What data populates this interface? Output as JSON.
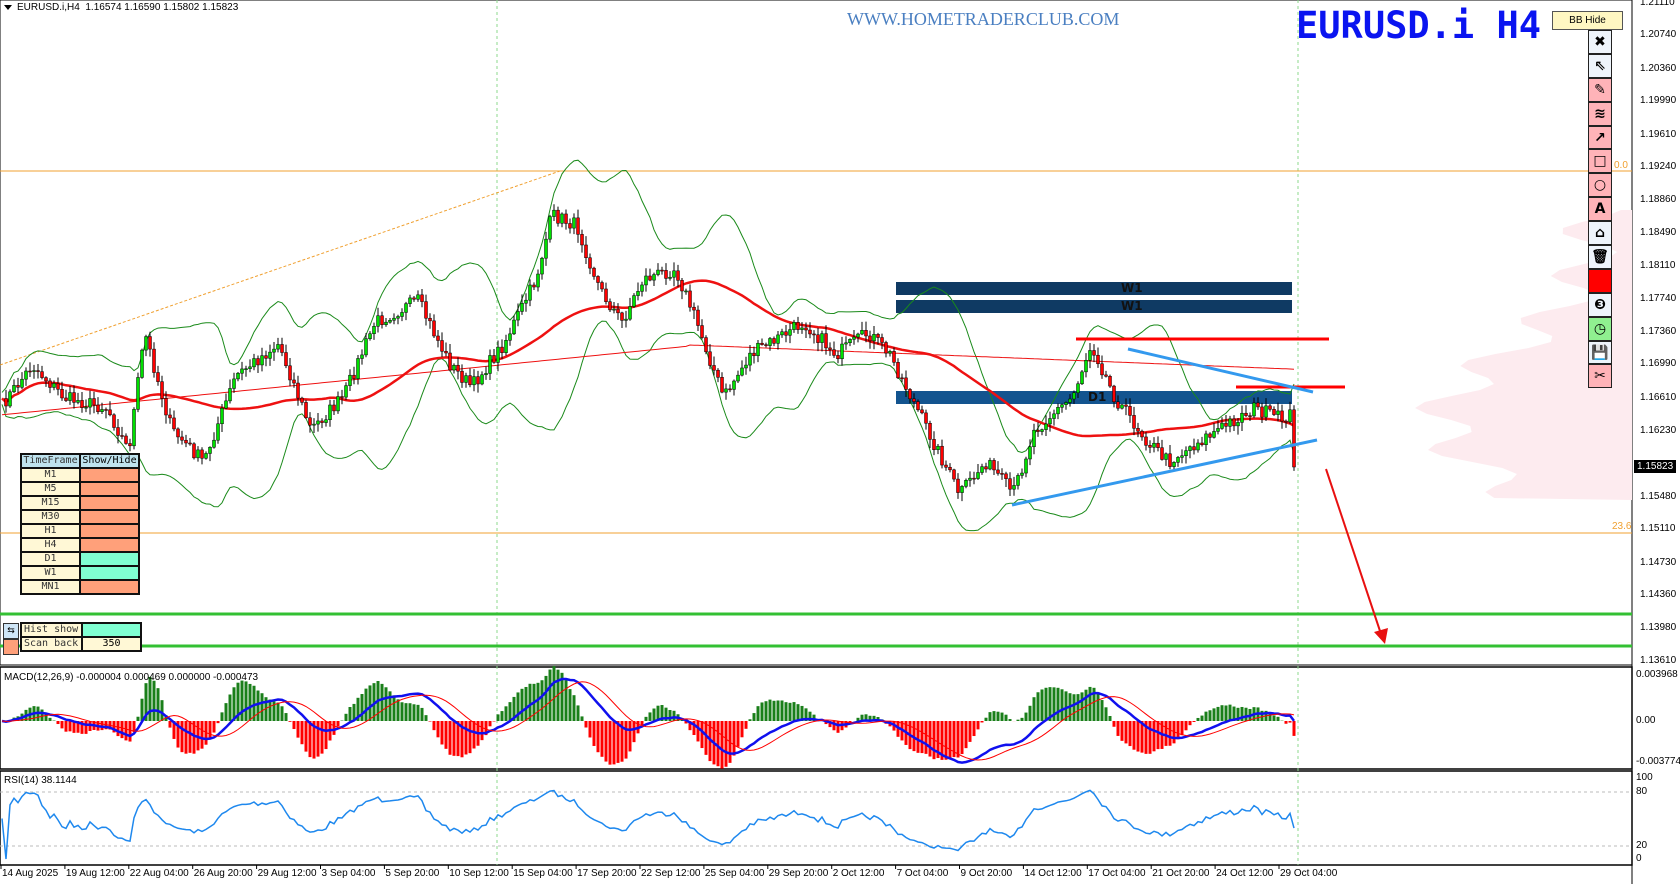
{
  "header": {
    "symbol": "EURUSD.i,H4",
    "ohlc": "1.16574 1.16590 1.15802 1.15823"
  },
  "watermark": "WWW.HOMETRADERCLUB.COM",
  "big_symbol": "EURUSD.i H4",
  "bb_hide_label": "BB Hide",
  "toolbar": [
    {
      "icon": "close-icon",
      "glyph": "✖",
      "style": "plain"
    },
    {
      "icon": "cursor-icon",
      "glyph": "⇖",
      "style": "plain"
    },
    {
      "icon": "pencil-icon",
      "glyph": "✎",
      "style": "pink"
    },
    {
      "icon": "wave-lines-icon",
      "glyph": "≋",
      "style": "pink"
    },
    {
      "icon": "arrow-icon",
      "glyph": "↗",
      "style": "pink"
    },
    {
      "icon": "rectangle-icon",
      "glyph": "□",
      "style": "pink"
    },
    {
      "icon": "circle-icon",
      "glyph": "○",
      "style": "pink"
    },
    {
      "icon": "text-icon",
      "glyph": "A",
      "style": "pink"
    },
    {
      "icon": "label-icon",
      "glyph": "⌂",
      "style": "plain"
    },
    {
      "icon": "trash-icon",
      "glyph": "🗑",
      "style": "plain"
    },
    {
      "icon": "color-swatch-icon",
      "glyph": "",
      "style": "red"
    },
    {
      "icon": "number-three-icon",
      "glyph": "❸",
      "style": "plain"
    },
    {
      "icon": "clock-icon",
      "glyph": "◷",
      "style": "green"
    },
    {
      "icon": "save-icon",
      "glyph": "💾",
      "style": "plain"
    },
    {
      "icon": "scissors-icon",
      "glyph": "✂",
      "style": "pink"
    }
  ],
  "price_axis": [
    "1.21110",
    "1.20740",
    "1.20360",
    "1.19990",
    "1.19610",
    "1.19240",
    "1.18860",
    "1.18490",
    "1.18110",
    "1.17740",
    "1.17360",
    "1.16990",
    "1.16610",
    "1.16230",
    "1.15480",
    "1.15110",
    "1.14730",
    "1.14360",
    "1.13980",
    "1.13610"
  ],
  "current_price": "1.15823",
  "fib_levels": [
    "0.0",
    "23.6"
  ],
  "zones": [
    "W1",
    "W1",
    "D1"
  ],
  "macd": {
    "label": "MACD(12,26,9) -0.000004 0.000469 0.000000 -0.000473",
    "axis": [
      "0.003968",
      "0.00",
      "-0.003774"
    ]
  },
  "rsi": {
    "label": "RSI(14) 38.1144",
    "axis": [
      "100",
      "80",
      "20",
      "0"
    ]
  },
  "time_axis": [
    "14 Aug 2025",
    "19 Aug 12:00",
    "22 Aug 04:00",
    "26 Aug 20:00",
    "29 Aug 12:00",
    "3 Sep 04:00",
    "5 Sep 20:00",
    "10 Sep 12:00",
    "15 Sep 04:00",
    "17 Sep 20:00",
    "22 Sep 12:00",
    "25 Sep 04:00",
    "29 Sep 20:00",
    "2 Oct 12:00",
    "7 Oct 04:00",
    "9 Oct 20:00",
    "14 Oct 12:00",
    "17 Oct 04:00",
    "21 Oct 20:00",
    "24 Oct 12:00",
    "29 Oct 04:00"
  ],
  "timeframe_table": {
    "header": [
      "TimeFrame",
      "Show/Hide"
    ],
    "rows": [
      {
        "tf": "M1",
        "state": "hide"
      },
      {
        "tf": "M5",
        "state": "hide"
      },
      {
        "tf": "M15",
        "state": "hide"
      },
      {
        "tf": "M30",
        "state": "hide"
      },
      {
        "tf": "H1",
        "state": "hide"
      },
      {
        "tf": "H4",
        "state": "hide"
      },
      {
        "tf": "D1",
        "state": "show"
      },
      {
        "tf": "W1",
        "state": "show"
      },
      {
        "tf": "MN1",
        "state": "hide"
      }
    ],
    "hist_show_label": "Hist show",
    "hist_show_state": "show",
    "scan_back_label": "Scan back",
    "scan_back_value": "350"
  },
  "colors": {
    "show": "#80ffd2",
    "hide": "#ffa07a",
    "bull": "#00e000",
    "bear": "#ff0000",
    "zone_w1": "#0f3a63",
    "zone_d1": "#13548f",
    "support": "#33c033",
    "fib": "#f0a030",
    "trend": "#3399ee"
  }
}
